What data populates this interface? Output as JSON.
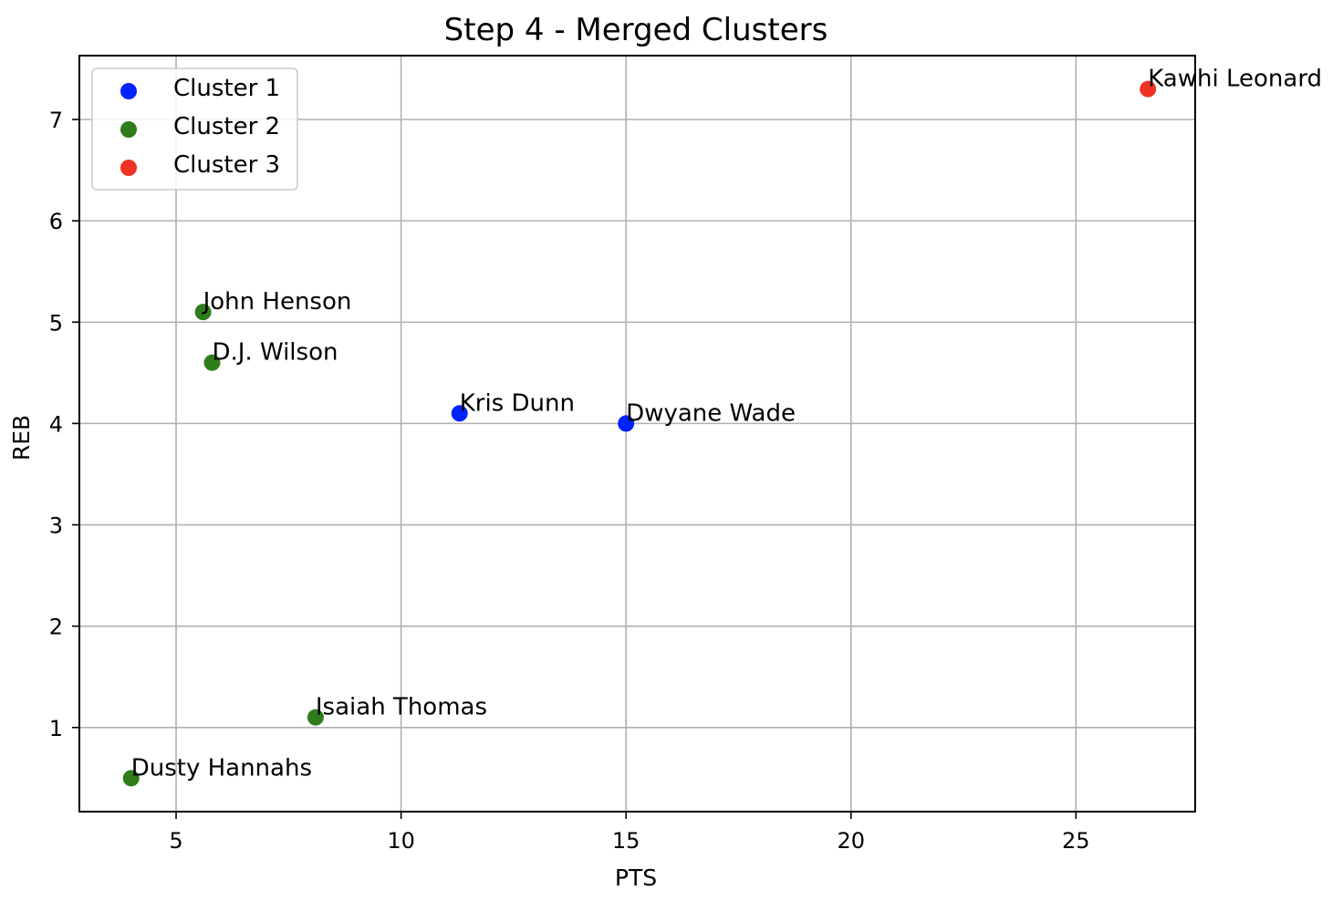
{
  "chart_data": {
    "type": "scatter",
    "title": "Step 4 - Merged Clusters",
    "xlabel": "PTS",
    "ylabel": "REB",
    "xlim": [
      2.85,
      27.65
    ],
    "ylim": [
      0.17,
      7.63
    ],
    "xticks": [
      5,
      10,
      15,
      20,
      25
    ],
    "yticks": [
      1,
      2,
      3,
      4,
      5,
      6,
      7
    ],
    "grid": true,
    "legend_position": "top-left",
    "series": [
      {
        "name": "Cluster 1",
        "color": "#0022ff",
        "points": [
          {
            "x": 11.3,
            "y": 4.1,
            "label": "Kris Dunn"
          },
          {
            "x": 15.0,
            "y": 4.0,
            "label": "Dwyane Wade"
          }
        ]
      },
      {
        "name": "Cluster 2",
        "color": "#2e7d1a",
        "points": [
          {
            "x": 5.6,
            "y": 5.1,
            "label": "John Henson"
          },
          {
            "x": 5.8,
            "y": 4.6,
            "label": "D.J. Wilson"
          },
          {
            "x": 8.1,
            "y": 1.1,
            "label": "Isaiah Thomas"
          },
          {
            "x": 4.0,
            "y": 0.5,
            "label": "Dusty Hannahs"
          }
        ]
      },
      {
        "name": "Cluster 3",
        "color": "#ee3322",
        "points": [
          {
            "x": 26.6,
            "y": 7.3,
            "label": "Kawhi Leonard"
          }
        ]
      }
    ]
  }
}
